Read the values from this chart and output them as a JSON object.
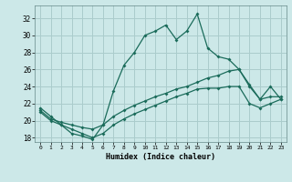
{
  "xlabel": "Humidex (Indice chaleur)",
  "ylabel": "",
  "bg_color": "#cce8e8",
  "grid_color": "#aacccc",
  "line_color": "#1a6b5a",
  "xlim": [
    -0.5,
    23.5
  ],
  "ylim": [
    17.5,
    33.5
  ],
  "xticks": [
    0,
    1,
    2,
    3,
    4,
    5,
    6,
    7,
    8,
    9,
    10,
    11,
    12,
    13,
    14,
    15,
    16,
    17,
    18,
    19,
    20,
    21,
    22,
    23
  ],
  "yticks": [
    18,
    20,
    22,
    24,
    26,
    28,
    30,
    32
  ],
  "line1_x": [
    0,
    1,
    2,
    3,
    4,
    5,
    6,
    7,
    8,
    9,
    10,
    11,
    12,
    13,
    14,
    15,
    16,
    17,
    18,
    19,
    20,
    21,
    22,
    23
  ],
  "line1_y": [
    21.5,
    20.5,
    19.5,
    18.5,
    18.2,
    17.8,
    19.5,
    23.5,
    26.5,
    28.0,
    30.0,
    30.5,
    31.2,
    29.5,
    30.5,
    32.5,
    28.5,
    27.5,
    27.2,
    26.0,
    24.0,
    22.5,
    24.0,
    22.5
  ],
  "line2_x": [
    0,
    1,
    2,
    3,
    4,
    5,
    6,
    7,
    8,
    9,
    10,
    11,
    12,
    13,
    14,
    15,
    16,
    17,
    18,
    19,
    20,
    21,
    22,
    23
  ],
  "line2_y": [
    21.2,
    20.2,
    19.8,
    19.5,
    19.2,
    19.0,
    19.5,
    20.5,
    21.2,
    21.8,
    22.3,
    22.8,
    23.2,
    23.7,
    24.0,
    24.5,
    25.0,
    25.3,
    25.8,
    26.0,
    24.2,
    22.5,
    22.8,
    22.8
  ],
  "line3_x": [
    0,
    1,
    2,
    3,
    4,
    5,
    6,
    7,
    8,
    9,
    10,
    11,
    12,
    13,
    14,
    15,
    16,
    17,
    18,
    19,
    20,
    21,
    22,
    23
  ],
  "line3_y": [
    21.0,
    20.0,
    19.5,
    19.0,
    18.5,
    18.0,
    18.5,
    19.5,
    20.2,
    20.8,
    21.3,
    21.8,
    22.3,
    22.8,
    23.2,
    23.7,
    23.8,
    23.8,
    24.0,
    24.0,
    22.0,
    21.5,
    22.0,
    22.5
  ]
}
